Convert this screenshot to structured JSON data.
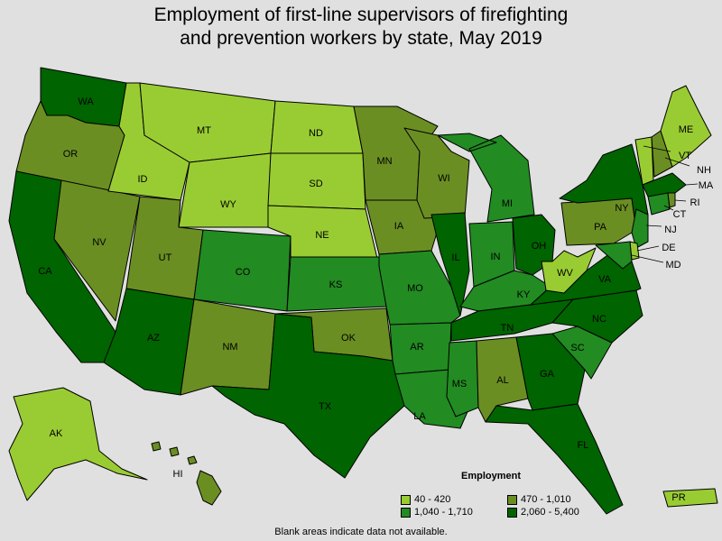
{
  "title_line1": "Employment of first-line supervisors of firefighting",
  "title_line2": "and prevention workers by state, May 2019",
  "legend": {
    "title": "Employment",
    "items": [
      {
        "label": "40 - 420",
        "color": "#99cc33"
      },
      {
        "label": "470 - 1,010",
        "color": "#6b8e23"
      },
      {
        "label": "1,040 - 1,710",
        "color": "#228b22"
      },
      {
        "label": "2,060 - 5,400",
        "color": "#006400"
      }
    ]
  },
  "note": "Blank areas indicate data not available.",
  "chart_data": {
    "type": "choropleth",
    "legend_title": "Employment",
    "bins": [
      "40 - 420",
      "470 - 1,010",
      "1,040 - 1,710",
      "2,060 - 5,400"
    ],
    "states": {
      "WA": "2,060 - 5,400",
      "OR": "470 - 1,010",
      "CA": "2,060 - 5,400",
      "NV": "470 - 1,010",
      "ID": "40 - 420",
      "MT": "40 - 420",
      "WY": "40 - 420",
      "UT": "470 - 1,010",
      "AZ": "2,060 - 5,400",
      "CO": "1,040 - 1,710",
      "NM": "470 - 1,010",
      "ND": "40 - 420",
      "SD": "40 - 420",
      "NE": "40 - 420",
      "KS": "1,040 - 1,710",
      "OK": "470 - 1,010",
      "TX": "2,060 - 5,400",
      "MN": "470 - 1,010",
      "IA": "470 - 1,010",
      "MO": "1,040 - 1,710",
      "AR": "1,040 - 1,710",
      "LA": "1,040 - 1,710",
      "WI": "470 - 1,010",
      "IL": "2,060 - 5,400",
      "MI": "1,040 - 1,710",
      "IN": "1,040 - 1,710",
      "OH": "2,060 - 5,400",
      "KY": "1,040 - 1,710",
      "TN": "2,060 - 5,400",
      "MS": "1,040 - 1,710",
      "AL": "470 - 1,010",
      "GA": "2,060 - 5,400",
      "FL": "2,060 - 5,400",
      "SC": "1,040 - 1,710",
      "NC": "2,060 - 5,400",
      "VA": "2,060 - 5,400",
      "WV": "40 - 420",
      "PA": "470 - 1,010",
      "NY": "2,060 - 5,400",
      "VT": "40 - 420",
      "NH": "470 - 1,010",
      "ME": "40 - 420",
      "MA": "2,060 - 5,400",
      "RI": "470 - 1,010",
      "CT": "1,040 - 1,710",
      "NJ": "1,040 - 1,710",
      "DE": "40 - 420",
      "MD": "1,040 - 1,710",
      "AK": "40 - 420",
      "HI": "470 - 1,010",
      "PR": "40 - 420"
    }
  }
}
